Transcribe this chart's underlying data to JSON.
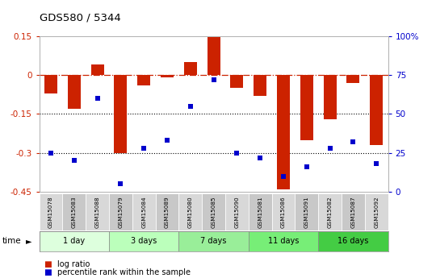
{
  "title": "GDS580 / 5344",
  "samples": [
    "GSM15078",
    "GSM15083",
    "GSM15088",
    "GSM15079",
    "GSM15084",
    "GSM15089",
    "GSM15080",
    "GSM15085",
    "GSM15090",
    "GSM15081",
    "GSM15086",
    "GSM15091",
    "GSM15082",
    "GSM15087",
    "GSM15092"
  ],
  "log_ratio": [
    -0.07,
    -0.13,
    0.04,
    -0.3,
    -0.04,
    -0.01,
    0.05,
    0.145,
    -0.05,
    -0.08,
    -0.44,
    -0.25,
    -0.17,
    -0.03,
    -0.27
  ],
  "percentile_rank": [
    25,
    20,
    60,
    5,
    28,
    33,
    55,
    72,
    25,
    22,
    10,
    16,
    28,
    32,
    18
  ],
  "groups": [
    {
      "label": "1 day",
      "count": 3,
      "color": "#ddffdd"
    },
    {
      "label": "3 days",
      "count": 3,
      "color": "#bbffbb"
    },
    {
      "label": "7 days",
      "count": 3,
      "color": "#99ee99"
    },
    {
      "label": "11 days",
      "count": 3,
      "color": "#77ee77"
    },
    {
      "label": "16 days",
      "count": 3,
      "color": "#44cc44"
    }
  ],
  "bar_color": "#cc2200",
  "dot_color": "#0000cc",
  "ylim_left": [
    -0.45,
    0.15
  ],
  "ylim_right": [
    0,
    100
  ],
  "yticks_left": [
    0.15,
    0.0,
    -0.15,
    -0.3,
    -0.45
  ],
  "yticks_left_labels": [
    "0.15",
    "0",
    "-0.15",
    "-0.3",
    "-0.45"
  ],
  "yticks_right": [
    100,
    75,
    50,
    25,
    0
  ],
  "yticks_right_labels": [
    "100%",
    "75",
    "50",
    "25",
    "0"
  ],
  "bar_width": 0.55
}
